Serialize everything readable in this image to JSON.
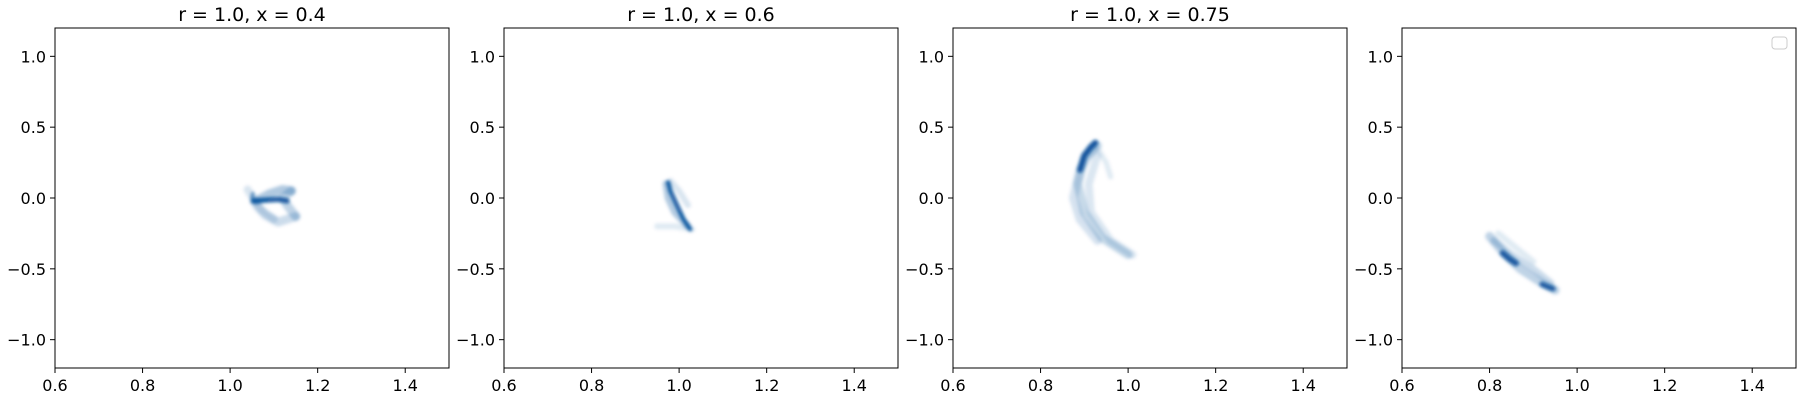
{
  "figure": {
    "background": "#ffffff",
    "cmap": "Blues"
  },
  "chart_data": [
    {
      "type": "heatmap",
      "title": "r = 1.0, x = 0.4",
      "xlim": [
        0.6,
        1.5
      ],
      "ylim": [
        -1.2,
        1.2
      ],
      "xticks": [
        "0.6",
        "0.8",
        "1.0",
        "1.2",
        "1.4"
      ],
      "yticks": [
        "1.0",
        "0.5",
        "0.0",
        "−0.5",
        "−1.0"
      ],
      "grid": false,
      "legend": false,
      "density_color": "#08519c",
      "strands": [
        {
          "points": [
            [
              1.055,
              -0.02
            ],
            [
              1.08,
              -0.015
            ],
            [
              1.11,
              -0.01
            ],
            [
              1.13,
              -0.02
            ]
          ],
          "width": 0.012,
          "opacity": 0.9
        },
        {
          "points": [
            [
              1.05,
              -0.03
            ],
            [
              1.05,
              0.0
            ],
            [
              1.052,
              0.03
            ]
          ],
          "width": 0.008,
          "opacity": 0.6
        },
        {
          "points": [
            [
              1.06,
              -0.02
            ],
            [
              1.09,
              0.03
            ],
            [
              1.12,
              0.06
            ],
            [
              1.14,
              0.05
            ]
          ],
          "width": 0.02,
          "opacity": 0.3
        },
        {
          "points": [
            [
              1.14,
              0.05
            ],
            [
              1.12,
              0.0
            ],
            [
              1.13,
              -0.05
            ],
            [
              1.15,
              -0.13
            ]
          ],
          "width": 0.02,
          "opacity": 0.25
        },
        {
          "points": [
            [
              1.06,
              -0.05
            ],
            [
              1.08,
              -0.12
            ],
            [
              1.11,
              -0.17
            ],
            [
              1.15,
              -0.13
            ]
          ],
          "width": 0.02,
          "opacity": 0.2
        },
        {
          "points": [
            [
              1.04,
              0.06
            ],
            [
              1.05,
              0.01
            ],
            [
              1.07,
              -0.08
            ],
            [
              1.1,
              -0.15
            ]
          ],
          "width": 0.018,
          "opacity": 0.15
        }
      ]
    },
    {
      "type": "heatmap",
      "title": "r = 1.0, x = 0.6",
      "xlim": [
        0.6,
        1.5
      ],
      "ylim": [
        -1.2,
        1.2
      ],
      "xticks": [
        "0.6",
        "0.8",
        "1.0",
        "1.2",
        "1.4"
      ],
      "yticks": [
        "1.0",
        "0.5",
        "0.0",
        "−0.5",
        "−1.0"
      ],
      "grid": false,
      "legend": false,
      "density_color": "#08519c",
      "strands": [
        {
          "points": [
            [
              0.975,
              0.11
            ],
            [
              0.98,
              0.05
            ],
            [
              0.995,
              -0.05
            ],
            [
              1.01,
              -0.15
            ],
            [
              1.025,
              -0.22
            ]
          ],
          "width": 0.01,
          "opacity": 0.9
        },
        {
          "points": [
            [
              0.97,
              0.1
            ],
            [
              0.975,
              0.0
            ],
            [
              0.99,
              -0.1
            ],
            [
              1.02,
              -0.2
            ]
          ],
          "width": 0.016,
          "opacity": 0.3
        },
        {
          "points": [
            [
              0.98,
              0.12
            ],
            [
              1.0,
              0.05
            ],
            [
              1.02,
              -0.05
            ]
          ],
          "width": 0.014,
          "opacity": 0.15
        },
        {
          "points": [
            [
              0.95,
              -0.2
            ],
            [
              0.99,
              -0.2
            ],
            [
              1.03,
              -0.22
            ]
          ],
          "width": 0.014,
          "opacity": 0.12
        }
      ]
    },
    {
      "type": "heatmap",
      "title": "r = 1.0, x = 0.75",
      "xlim": [
        0.6,
        1.5
      ],
      "ylim": [
        -1.2,
        1.2
      ],
      "xticks": [
        "0.6",
        "0.8",
        "1.0",
        "1.2",
        "1.4"
      ],
      "yticks": [
        "1.0",
        "0.5",
        "0.0",
        "−0.5",
        "−1.0"
      ],
      "grid": false,
      "legend": false,
      "density_color": "#08519c",
      "strands": [
        {
          "points": [
            [
              0.925,
              0.39
            ],
            [
              0.915,
              0.36
            ],
            [
              0.9,
              0.3
            ],
            [
              0.89,
              0.2
            ]
          ],
          "width": 0.014,
          "opacity": 0.95
        },
        {
          "points": [
            [
              0.93,
              0.37
            ],
            [
              0.9,
              0.28
            ],
            [
              0.885,
              0.1
            ],
            [
              0.9,
              -0.1
            ],
            [
              0.94,
              -0.28
            ],
            [
              1.0,
              -0.4
            ]
          ],
          "width": 0.02,
          "opacity": 0.22
        },
        {
          "points": [
            [
              0.92,
              0.35
            ],
            [
              0.89,
              0.2
            ],
            [
              0.875,
              0.0
            ],
            [
              0.89,
              -0.15
            ],
            [
              0.93,
              -0.3
            ]
          ],
          "width": 0.02,
          "opacity": 0.16
        },
        {
          "points": [
            [
              0.93,
              0.3
            ],
            [
              0.91,
              0.1
            ],
            [
              0.915,
              -0.1
            ],
            [
              0.96,
              -0.3
            ],
            [
              1.01,
              -0.4
            ]
          ],
          "width": 0.018,
          "opacity": 0.14
        },
        {
          "points": [
            [
              0.93,
              0.35
            ],
            [
              0.95,
              0.25
            ],
            [
              0.96,
              0.15
            ]
          ],
          "width": 0.012,
          "opacity": 0.12
        }
      ]
    },
    {
      "type": "heatmap",
      "title": "",
      "xlim": [
        0.6,
        1.5
      ],
      "ylim": [
        -1.2,
        1.2
      ],
      "xticks": [
        "0.6",
        "0.8",
        "1.0",
        "1.2",
        "1.4"
      ],
      "yticks": [
        "1.0",
        "0.5",
        "0.0",
        "−0.5",
        "−1.0"
      ],
      "grid": false,
      "legend": "top-right",
      "legend_entries": [],
      "density_color": "#08519c",
      "strands": [
        {
          "points": [
            [
              0.83,
              -0.39
            ],
            [
              0.845,
              -0.43
            ],
            [
              0.86,
              -0.46
            ]
          ],
          "width": 0.014,
          "opacity": 0.9
        },
        {
          "points": [
            [
              0.92,
              -0.61
            ],
            [
              0.935,
              -0.63
            ],
            [
              0.945,
              -0.64
            ]
          ],
          "width": 0.012,
          "opacity": 0.9
        },
        {
          "points": [
            [
              0.8,
              -0.27
            ],
            [
              0.83,
              -0.38
            ],
            [
              0.87,
              -0.5
            ],
            [
              0.92,
              -0.6
            ],
            [
              0.95,
              -0.65
            ]
          ],
          "width": 0.02,
          "opacity": 0.25
        },
        {
          "points": [
            [
              0.81,
              -0.3
            ],
            [
              0.85,
              -0.4
            ],
            [
              0.9,
              -0.5
            ],
            [
              0.94,
              -0.6
            ]
          ],
          "width": 0.016,
          "opacity": 0.2
        },
        {
          "points": [
            [
              0.82,
              -0.25
            ],
            [
              0.86,
              -0.35
            ],
            [
              0.9,
              -0.45
            ]
          ],
          "width": 0.014,
          "opacity": 0.12
        }
      ]
    }
  ]
}
